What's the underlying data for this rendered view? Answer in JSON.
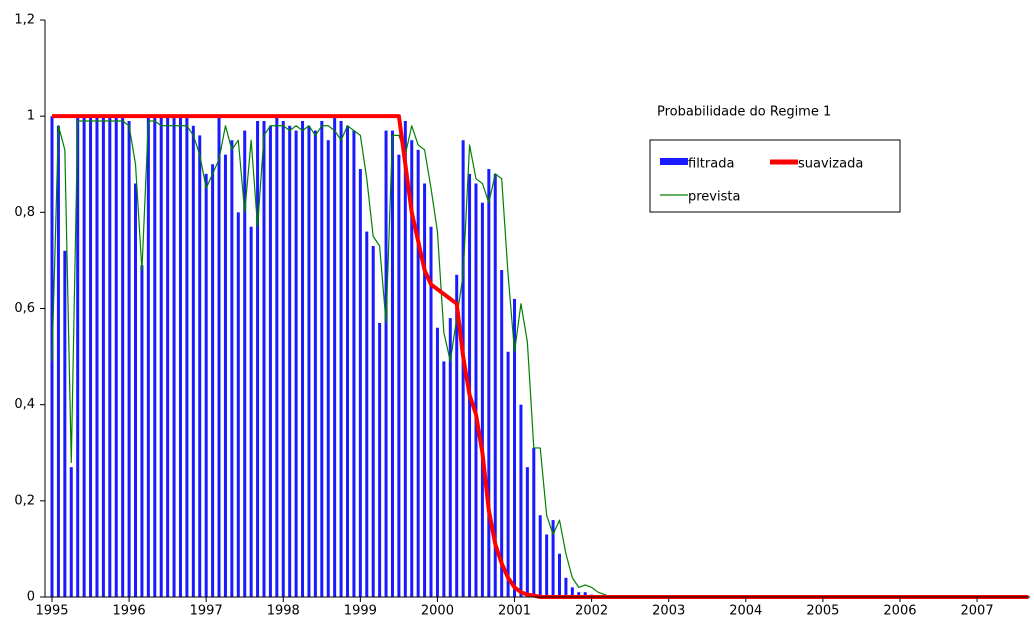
{
  "chart_data": {
    "type": "combo",
    "title": "Probabilidade do Regime 1",
    "categories": [
      "1995",
      null,
      null,
      null,
      null,
      null,
      null,
      null,
      null,
      null,
      null,
      null,
      "1996",
      null,
      null,
      null,
      null,
      null,
      null,
      null,
      null,
      null,
      null,
      null,
      "1997",
      null,
      null,
      null,
      null,
      null,
      null,
      null,
      null,
      null,
      null,
      null,
      "1998",
      null,
      null,
      null,
      null,
      null,
      null,
      null,
      null,
      null,
      null,
      null,
      "1999",
      null,
      null,
      null,
      null,
      null,
      null,
      null,
      null,
      null,
      null,
      null,
      "2000",
      null,
      null,
      null,
      null,
      null,
      null,
      null,
      null,
      null,
      null,
      null,
      "2001",
      null,
      null,
      null,
      null,
      null,
      null,
      null,
      null,
      null,
      null,
      null,
      "2002",
      null,
      null,
      null,
      null,
      null,
      null,
      null,
      null,
      null,
      null,
      null,
      "2003",
      null,
      null,
      null,
      null,
      null,
      null,
      null,
      null,
      null,
      null,
      null,
      "2004",
      null,
      null,
      null,
      null,
      null,
      null,
      null,
      null,
      null,
      null,
      null,
      "2005",
      null,
      null,
      null,
      null,
      null,
      null,
      null,
      null,
      null,
      null,
      null,
      "2006",
      null,
      null,
      null,
      null,
      null,
      null,
      null,
      null,
      null,
      null,
      null,
      "2007",
      null,
      null,
      null,
      null,
      null,
      null,
      null,
      null
    ],
    "series": [
      {
        "name": "filtrada",
        "type": "bar",
        "color": "#1a1aff",
        "values": [
          1,
          0.98,
          0.72,
          0.27,
          1,
          1,
          1,
          1,
          1,
          1,
          1,
          1,
          0.99,
          0.86,
          0.69,
          1,
          1,
          1,
          1,
          1,
          1,
          1,
          0.98,
          0.96,
          0.88,
          0.9,
          1,
          0.92,
          0.95,
          0.8,
          0.97,
          0.77,
          0.99,
          0.99,
          0.98,
          1,
          0.99,
          0.98,
          0.97,
          0.99,
          0.98,
          0.97,
          0.99,
          0.95,
          1,
          0.99,
          0.98,
          0.97,
          0.89,
          0.76,
          0.73,
          0.57,
          0.97,
          0.97,
          0.92,
          0.99,
          0.95,
          0.93,
          0.86,
          0.77,
          0.56,
          0.49,
          0.58,
          0.67,
          0.95,
          0.88,
          0.86,
          0.82,
          0.89,
          0.88,
          0.68,
          0.51,
          0.62,
          0.4,
          0.27,
          0.31,
          0.17,
          0.13,
          0.16,
          0.09,
          0.04,
          0.02,
          0.01,
          0.01,
          0.005,
          0,
          0,
          0,
          0,
          0,
          0,
          0,
          0,
          0,
          0,
          0,
          0,
          0,
          0,
          0,
          0,
          0,
          0,
          0,
          0,
          0,
          0,
          0,
          0,
          0,
          0,
          0,
          0,
          0,
          0,
          0,
          0,
          0,
          0,
          0,
          0,
          0,
          0,
          0,
          0,
          0,
          0,
          0,
          0,
          0,
          0,
          0,
          0,
          0,
          0,
          0,
          0,
          0,
          0,
          0,
          0,
          0,
          0,
          0,
          0,
          0,
          0,
          0,
          0,
          0,
          0,
          0,
          0
        ]
      },
      {
        "name": "suavizada",
        "type": "line",
        "color": "#ff0000",
        "values": [
          1,
          1,
          1,
          1,
          1,
          1,
          1,
          1,
          1,
          1,
          1,
          1,
          1,
          1,
          1,
          1,
          1,
          1,
          1,
          1,
          1,
          1,
          1,
          1,
          1,
          1,
          1,
          1,
          1,
          1,
          1,
          1,
          1,
          1,
          1,
          1,
          1,
          1,
          1,
          1,
          1,
          1,
          1,
          1,
          1,
          1,
          1,
          1,
          1,
          1,
          1,
          1,
          1,
          1,
          1,
          0.9,
          0.8,
          0.74,
          0.68,
          0.65,
          0.64,
          0.63,
          0.62,
          0.61,
          0.5,
          0.42,
          0.38,
          0.3,
          0.18,
          0.11,
          0.07,
          0.04,
          0.02,
          0.01,
          0.005,
          0.003,
          0,
          0,
          0,
          0,
          0,
          0,
          0,
          0,
          0,
          0,
          0,
          0,
          0,
          0,
          0,
          0,
          0,
          0,
          0,
          0,
          0,
          0,
          0,
          0,
          0,
          0,
          0,
          0,
          0,
          0,
          0,
          0,
          0,
          0,
          0,
          0,
          0,
          0,
          0,
          0,
          0,
          0,
          0,
          0,
          0,
          0,
          0,
          0,
          0,
          0,
          0,
          0,
          0,
          0,
          0,
          0,
          0,
          0,
          0,
          0,
          0,
          0,
          0,
          0,
          0,
          0,
          0,
          0,
          0,
          0,
          0,
          0,
          0,
          0,
          0,
          0,
          0
        ]
      },
      {
        "name": "prevista",
        "type": "line",
        "color": "#008000",
        "values": [
          0.49,
          0.98,
          0.93,
          0.28,
          0.99,
          0.99,
          0.99,
          0.99,
          0.99,
          0.99,
          0.99,
          0.99,
          0.98,
          0.9,
          0.68,
          0.99,
          0.99,
          0.98,
          0.98,
          0.98,
          0.98,
          0.98,
          0.96,
          0.92,
          0.85,
          0.88,
          0.91,
          0.98,
          0.93,
          0.95,
          0.8,
          0.95,
          0.77,
          0.96,
          0.98,
          0.98,
          0.98,
          0.97,
          0.98,
          0.97,
          0.98,
          0.96,
          0.98,
          0.98,
          0.97,
          0.95,
          0.98,
          0.97,
          0.96,
          0.87,
          0.75,
          0.73,
          0.57,
          0.96,
          0.96,
          0.92,
          0.98,
          0.94,
          0.93,
          0.85,
          0.76,
          0.55,
          0.49,
          0.58,
          0.67,
          0.94,
          0.87,
          0.86,
          0.82,
          0.88,
          0.87,
          0.67,
          0.51,
          0.61,
          0.53,
          0.31,
          0.31,
          0.17,
          0.13,
          0.16,
          0.09,
          0.04,
          0.02,
          0.025,
          0.02,
          0.01,
          0.005,
          0,
          0,
          0,
          0,
          0,
          0,
          0,
          0,
          0,
          0,
          0,
          0,
          0,
          0,
          0,
          0,
          0,
          0,
          0,
          0,
          0,
          0,
          0,
          0,
          0,
          0,
          0,
          0,
          0,
          0,
          0,
          0,
          0,
          0,
          0,
          0,
          0,
          0,
          0,
          0,
          0,
          0,
          0,
          0,
          0,
          0,
          0,
          0,
          0,
          0,
          0,
          0,
          0,
          0,
          0,
          0,
          0,
          0,
          0,
          0,
          0,
          0,
          0,
          0,
          0,
          0
        ]
      }
    ],
    "ylim": [
      0,
      1.2
    ],
    "yticks": [
      0,
      {
        "value": 0.2,
        "label": "0,2"
      },
      {
        "value": 0.4,
        "label": "0,4"
      },
      {
        "value": 0.6,
        "label": "0,6"
      },
      {
        "value": 0.8,
        "label": "0,8"
      },
      1,
      {
        "value": 1.2,
        "label": "1,2"
      }
    ],
    "legend": "right"
  }
}
